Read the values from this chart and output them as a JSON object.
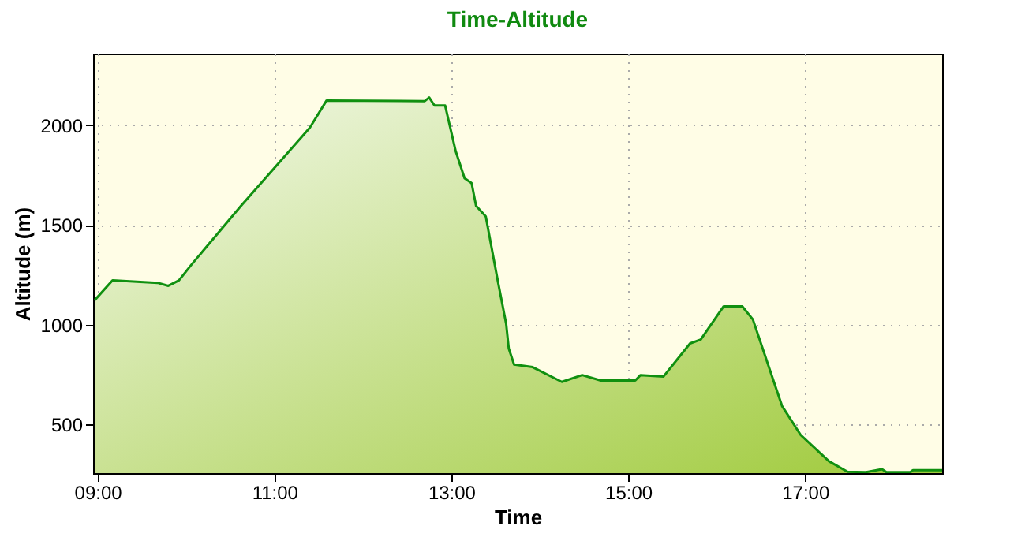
{
  "chart_data": {
    "type": "area",
    "title": "Time-Altitude",
    "xlabel": "Time",
    "ylabel": "Altitude (m)",
    "xlim": [
      8.95,
      18.55
    ],
    "ylim": [
      255,
      2360
    ],
    "xticks": [
      {
        "value": 9,
        "label": "09:00"
      },
      {
        "value": 11,
        "label": "11:00"
      },
      {
        "value": 13,
        "label": "13:00"
      },
      {
        "value": 15,
        "label": "15:00"
      },
      {
        "value": 17,
        "label": "17:00"
      }
    ],
    "yticks": [
      500,
      1000,
      1500,
      2000
    ],
    "grid": true,
    "series": [
      {
        "color": "#109010",
        "x": [
          8.97,
          9.17,
          9.68,
          9.8,
          9.92,
          10.06,
          10.63,
          11.4,
          11.59,
          12.7,
          12.75,
          12.81,
          12.93,
          13.05,
          13.15,
          13.23,
          13.28,
          13.39,
          13.53,
          13.62,
          13.65,
          13.71,
          13.92,
          14.25,
          14.48,
          14.69,
          15.08,
          15.14,
          15.4,
          15.7,
          15.82,
          16.08,
          16.29,
          16.41,
          16.65,
          16.74,
          16.95,
          17.27,
          17.48,
          17.69,
          17.87,
          17.92,
          18.19,
          18.22,
          18.55
        ],
        "values": [
          1124,
          1222,
          1210,
          1195,
          1222,
          1300,
          1600,
          1988,
          2125,
          2122,
          2140,
          2100,
          2100,
          1870,
          1735,
          1710,
          1596,
          1543,
          1210,
          1005,
          880,
          800,
          787,
          713,
          747,
          720,
          720,
          747,
          740,
          906,
          925,
          1092,
          1092,
          1026,
          710,
          592,
          447,
          315,
          262,
          260,
          275,
          260,
          260,
          270,
          270
        ]
      }
    ]
  }
}
